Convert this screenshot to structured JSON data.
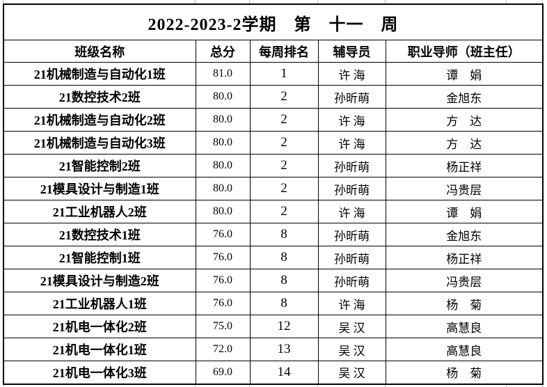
{
  "page": {
    "background_color": "#ffffff",
    "border_color": "#000000",
    "text_color": "#000000",
    "grid_line_color": "#b3bfd1"
  },
  "table": {
    "title": "2022-2023-2学期　第　十一　周",
    "columns": [
      "班级名称",
      "总分",
      "每周排名",
      "辅导员",
      "职业导师（班主任）"
    ],
    "rows": [
      [
        "21机械制造与自动化1班",
        "81.0",
        "1",
        "许 海",
        "谭　娟"
      ],
      [
        "21数控技术2班",
        "80.0",
        "2",
        "孙昕萌",
        "金旭东"
      ],
      [
        "21机械制造与自动化2班",
        "80.0",
        "2",
        "许 海",
        "方　达"
      ],
      [
        "21机械制造与自动化3班",
        "80.0",
        "2",
        "许 海",
        "方　达"
      ],
      [
        "21智能控制2班",
        "80.0",
        "2",
        "孙昕萌",
        "杨正祥"
      ],
      [
        "21模具设计与制造1班",
        "80.0",
        "2",
        "孙昕萌",
        "冯贵层"
      ],
      [
        "21工业机器人2班",
        "80.0",
        "2",
        "许 海",
        "谭　娟"
      ],
      [
        "21数控技术1班",
        "76.0",
        "8",
        "孙昕萌",
        "金旭东"
      ],
      [
        "21智能控制1班",
        "76.0",
        "8",
        "孙昕萌",
        "杨正祥"
      ],
      [
        "21模具设计与制造2班",
        "76.0",
        "8",
        "孙昕萌",
        "冯贵层"
      ],
      [
        "21工业机器人1班",
        "76.0",
        "8",
        "许 海",
        "杨　菊"
      ],
      [
        "21机电一体化2班",
        "75.0",
        "12",
        "吴 汉",
        "高慧良"
      ],
      [
        "21机电一体化1班",
        "72.0",
        "13",
        "吴 汉",
        "高慧良"
      ],
      [
        "21机电一体化3班",
        "69.0",
        "14",
        "吴 汉",
        "杨　菊"
      ]
    ]
  }
}
